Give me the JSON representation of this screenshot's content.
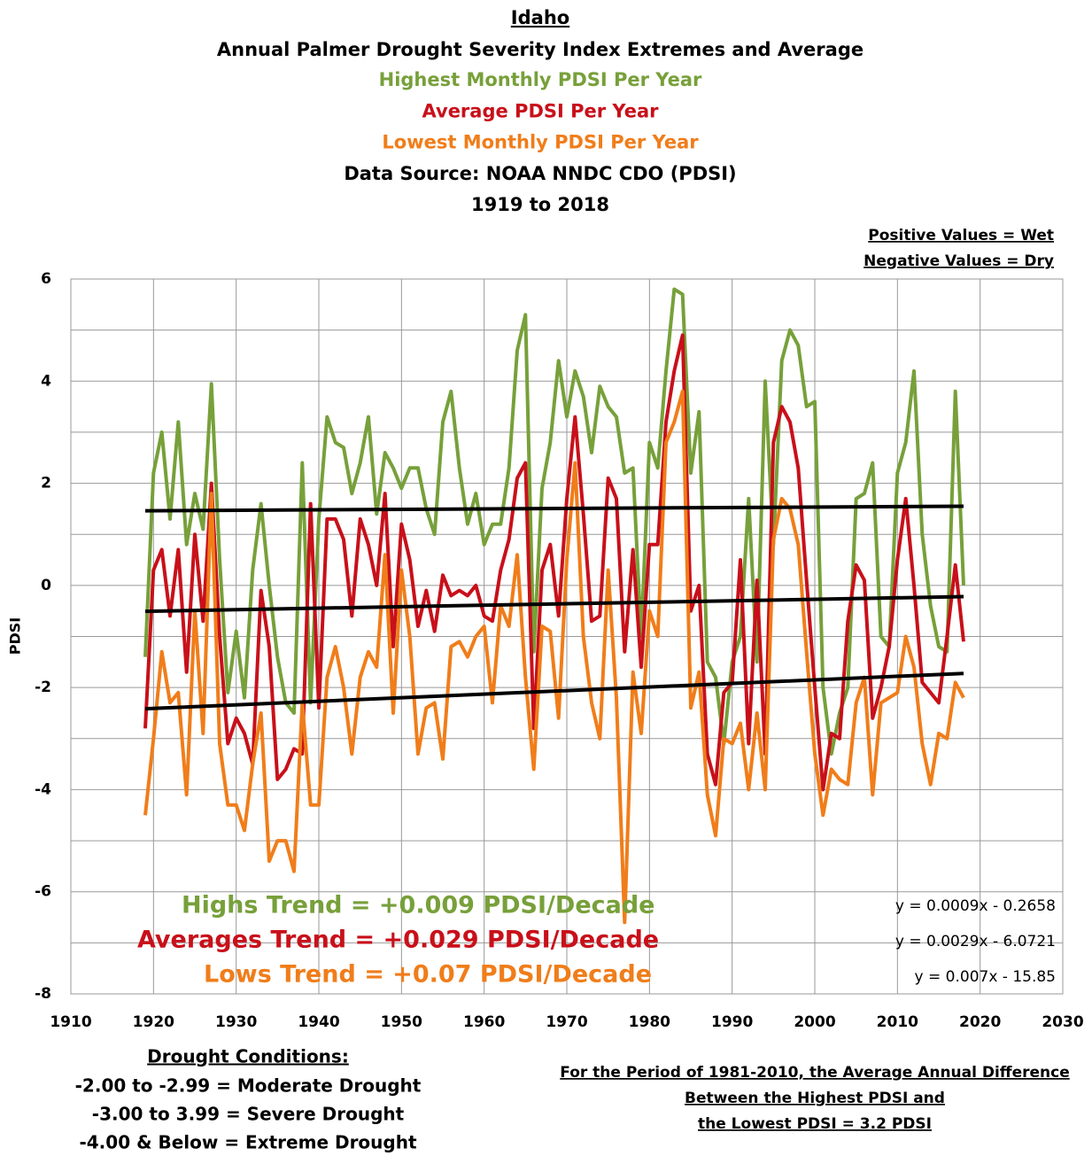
{
  "chart_data": {
    "type": "line",
    "title": "Idaho",
    "subtitle": "Annual Palmer Drought Severity Index Extremes and Average",
    "title_lines": [
      {
        "text": "Highest Monthly PDSI Per Year",
        "color": "#77a03a"
      },
      {
        "text": "Average PDSI Per Year",
        "color": "#c8101a"
      },
      {
        "text": "Lowest Monthly PDSI Per Year",
        "color": "#f07d1a"
      },
      {
        "text": "Data Source: NOAA NNDC CDO (PDSI)",
        "color": "#000000"
      },
      {
        "text": "1919 to 2018",
        "color": "#000000"
      }
    ],
    "corner_note": [
      "Positive Values = Wet",
      "Negative Values = Dry"
    ],
    "y_label": "PDSI",
    "x": [
      1919,
      1920,
      1921,
      1922,
      1923,
      1924,
      1925,
      1926,
      1927,
      1928,
      1929,
      1930,
      1931,
      1932,
      1933,
      1934,
      1935,
      1936,
      1937,
      1938,
      1939,
      1940,
      1941,
      1942,
      1943,
      1944,
      1945,
      1946,
      1947,
      1948,
      1949,
      1950,
      1951,
      1952,
      1953,
      1954,
      1955,
      1956,
      1957,
      1958,
      1959,
      1960,
      1961,
      1962,
      1963,
      1964,
      1965,
      1966,
      1967,
      1968,
      1969,
      1970,
      1971,
      1972,
      1973,
      1974,
      1975,
      1976,
      1977,
      1978,
      1979,
      1980,
      1981,
      1982,
      1983,
      1984,
      1985,
      1986,
      1987,
      1988,
      1989,
      1990,
      1991,
      1992,
      1993,
      1994,
      1995,
      1996,
      1997,
      1998,
      1999,
      2000,
      2001,
      2002,
      2003,
      2004,
      2005,
      2006,
      2007,
      2008,
      2009,
      2010,
      2011,
      2012,
      2013,
      2014,
      2015,
      2016,
      2017,
      2018
    ],
    "series": [
      {
        "name": "Highest Monthly PDSI",
        "color": "#77a03a",
        "values": [
          -1.4,
          2.2,
          3.0,
          1.3,
          3.2,
          0.8,
          1.8,
          1.1,
          3.95,
          0.5,
          -2.1,
          -0.9,
          -2.2,
          0.3,
          1.6,
          0.0,
          -1.4,
          -2.3,
          -2.5,
          2.4,
          -2.3,
          1.3,
          3.3,
          2.8,
          2.7,
          1.8,
          2.4,
          3.3,
          1.4,
          2.6,
          2.3,
          1.9,
          2.3,
          2.3,
          1.5,
          1.0,
          3.2,
          3.8,
          2.3,
          1.2,
          1.8,
          0.8,
          1.2,
          1.2,
          2.3,
          4.6,
          5.3,
          -1.3,
          1.9,
          2.8,
          4.4,
          3.3,
          4.2,
          3.7,
          2.6,
          3.9,
          3.5,
          3.3,
          2.2,
          2.3,
          -1.0,
          2.8,
          2.3,
          4.2,
          5.8,
          5.7,
          2.2,
          3.4,
          -1.5,
          -1.8,
          -3.1,
          -1.5,
          -1.0,
          1.7,
          -1.5,
          4.0,
          0.8,
          4.4,
          5.0,
          4.7,
          3.5,
          3.6,
          -2.0,
          -3.3,
          -2.5,
          -2.0,
          1.7,
          1.8,
          2.4,
          -1.0,
          -1.2,
          2.2,
          2.8,
          4.2,
          1.0,
          -0.4,
          -1.2,
          -1.3,
          3.8,
          0.0
        ]
      },
      {
        "name": "Average PDSI",
        "color": "#c8101a",
        "values": [
          -2.8,
          0.3,
          0.7,
          -0.6,
          0.7,
          -1.7,
          1.0,
          -0.7,
          2.0,
          -1.0,
          -3.1,
          -2.6,
          -2.9,
          -3.5,
          -0.1,
          -1.2,
          -3.8,
          -3.6,
          -3.2,
          -3.3,
          1.6,
          -2.4,
          1.3,
          1.3,
          0.9,
          -0.6,
          1.3,
          0.8,
          0.0,
          1.8,
          -1.2,
          1.2,
          0.5,
          -0.8,
          -0.1,
          -0.9,
          0.2,
          -0.2,
          -0.1,
          -0.2,
          0.0,
          -0.6,
          -0.7,
          0.3,
          0.9,
          2.1,
          2.4,
          -2.8,
          0.3,
          0.8,
          -0.6,
          1.7,
          3.3,
          1.4,
          -0.7,
          -0.6,
          2.1,
          1.7,
          -1.3,
          0.7,
          -1.6,
          0.8,
          0.8,
          3.2,
          4.2,
          4.9,
          -0.5,
          0.0,
          -3.3,
          -3.9,
          -2.1,
          -1.9,
          0.5,
          -3.1,
          0.1,
          -3.3,
          2.8,
          3.5,
          3.2,
          2.3,
          0.1,
          -2.0,
          -4.0,
          -2.9,
          -3.0,
          -0.7,
          0.4,
          0.1,
          -2.6,
          -2.0,
          -1.2,
          0.5,
          1.7,
          0.0,
          -1.9,
          -2.1,
          -2.3,
          -1.0,
          0.4,
          -1.1
        ]
      },
      {
        "name": "Lowest Monthly PDSI",
        "color": "#f07d1a",
        "values": [
          -4.5,
          -3.0,
          -1.3,
          -2.3,
          -2.1,
          -4.1,
          -0.5,
          -2.9,
          1.8,
          -3.1,
          -4.3,
          -4.3,
          -4.8,
          -3.5,
          -2.5,
          -5.4,
          -5.0,
          -5.0,
          -5.6,
          -2.3,
          -4.3,
          -4.3,
          -1.8,
          -1.2,
          -2.0,
          -3.3,
          -1.8,
          -1.3,
          -1.6,
          0.6,
          -2.5,
          0.3,
          -1.0,
          -3.3,
          -2.4,
          -2.3,
          -3.4,
          -1.2,
          -1.1,
          -1.4,
          -1.0,
          -0.8,
          -2.3,
          -0.4,
          -0.8,
          0.6,
          -1.8,
          -3.6,
          -0.8,
          -0.9,
          -2.6,
          0.5,
          2.4,
          -1.0,
          -2.3,
          -3.0,
          0.3,
          -2.2,
          -6.6,
          -1.7,
          -2.9,
          -0.5,
          -1.0,
          2.8,
          3.2,
          3.8,
          -2.4,
          -1.7,
          -4.1,
          -4.9,
          -3.0,
          -3.1,
          -2.7,
          -4.0,
          -2.5,
          -4.0,
          0.9,
          1.7,
          1.5,
          0.8,
          -1.3,
          -3.3,
          -4.5,
          -3.6,
          -3.8,
          -3.9,
          -2.3,
          -1.8,
          -4.1,
          -2.3,
          -2.2,
          -2.1,
          -1.0,
          -1.6,
          -3.1,
          -3.9,
          -2.9,
          -3.0,
          -1.9,
          -2.2
        ]
      }
    ],
    "trendlines": [
      {
        "label": "Highs Trend = +0.009 PDSI/Decade",
        "equation": "y = 0.0009x - 0.2658",
        "slope": 0.0009,
        "intercept": -0.2658,
        "color": "#77a03a"
      },
      {
        "label": "Averages Trend = +0.029 PDSI/Decade",
        "equation": "y = 0.0029x - 6.0721",
        "slope": 0.0029,
        "intercept": -6.0721,
        "color": "#c8101a"
      },
      {
        "label": "Lows Trend = +0.07 PDSI/Decade",
        "equation": "y = 0.007x - 15.85",
        "slope": 0.007,
        "intercept": -15.85,
        "color": "#f07d1a"
      }
    ],
    "xlim": [
      1910,
      2030
    ],
    "xticks": [
      1910,
      1920,
      1930,
      1940,
      1950,
      1960,
      1970,
      1980,
      1990,
      2000,
      2010,
      2020,
      2030
    ],
    "ylim": [
      -8,
      6
    ],
    "yticks": [
      -8,
      -6,
      -4,
      -2,
      0,
      2,
      4,
      6
    ],
    "y_minor_ticks": [
      -7,
      -5,
      -3,
      -1,
      1,
      3,
      5
    ],
    "grid": true,
    "drought_conditions": {
      "heading": "Drought Conditions:",
      "lines": [
        "-2.00 to -2.99 = Moderate Drought",
        "-3.00 to 3.99 = Severe Drought",
        "-4.00 & Below = Extreme Drought"
      ]
    },
    "period_note": [
      "For the Period of 1981-2010, the Average Annual Difference",
      "Between the  Highest PDSI and",
      "the Lowest PDSI = 3.2 PDSI"
    ]
  }
}
